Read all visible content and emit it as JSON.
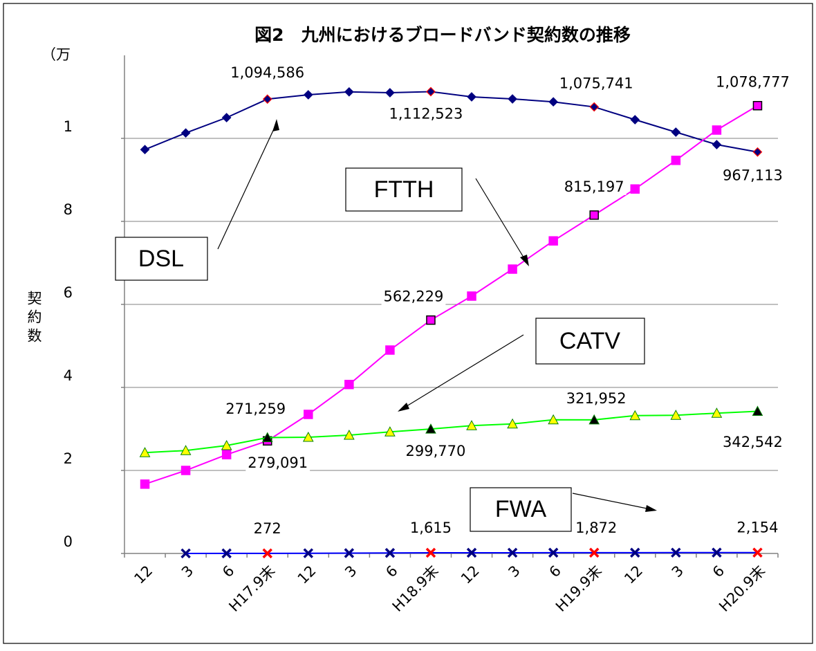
{
  "chart_data": {
    "type": "line",
    "title": "図2　九州におけるブロードバンド契約数の推移",
    "y_unit": "（万",
    "ylabel": "契約数",
    "categories": [
      "12",
      "3",
      "6",
      "H17.9末",
      "12",
      "3",
      "6",
      "H18.9末",
      "12",
      "3",
      "6",
      "H19.9末",
      "12",
      "3",
      "6",
      "H20.9末"
    ],
    "ylim": [
      0,
      12
    ],
    "yticks": [
      0,
      2,
      4,
      6,
      8,
      {
        "value": 10,
        "label": "1"
      }
    ],
    "grid": true,
    "series": [
      {
        "name": "DSL",
        "color": "#000080",
        "marker": "diamond",
        "marker_color": "#000080",
        "highlight_color": "#ff0000",
        "values": [
          9.73,
          10.13,
          10.5,
          10.94586,
          11.05,
          11.12,
          11.1,
          11.12523,
          11.0,
          10.95,
          10.88,
          10.75741,
          10.45,
          10.15,
          9.85,
          9.67113
        ],
        "value_labels": [
          null,
          null,
          null,
          "1,094,586",
          null,
          null,
          null,
          "1,112,523",
          null,
          null,
          null,
          "1,075,741",
          null,
          null,
          null,
          "967,113"
        ]
      },
      {
        "name": "FTTH",
        "color": "#ff00ff",
        "marker": "square",
        "marker_color": "#ff00ff",
        "highlight_color": "#000000",
        "values": [
          1.67,
          2.0,
          2.38,
          2.71259,
          3.35,
          4.07,
          4.9,
          5.62229,
          6.2,
          6.85,
          7.53,
          8.15197,
          8.78,
          9.47,
          10.2,
          10.78777
        ],
        "value_labels": [
          null,
          null,
          null,
          "271,259",
          null,
          null,
          null,
          "562,229",
          null,
          null,
          null,
          "815,197",
          null,
          null,
          null,
          "1,078,777"
        ]
      },
      {
        "name": "CATV",
        "color": "#00ff00",
        "marker": "triangle",
        "marker_color": "#ffff00",
        "highlight_color": "#000000",
        "values": [
          2.43,
          2.48,
          2.6,
          2.79091,
          2.8,
          2.85,
          2.93,
          2.9977,
          3.08,
          3.12,
          3.22,
          3.21952,
          3.32,
          3.33,
          3.38,
          3.42542
        ],
        "value_labels": [
          null,
          null,
          null,
          "279,091",
          null,
          null,
          null,
          "299,770",
          null,
          null,
          null,
          "321,952",
          null,
          null,
          null,
          "342,542"
        ]
      },
      {
        "name": "FWA",
        "color": "#0000ff",
        "marker": "x",
        "marker_color": "#000080",
        "highlight_color": "#ff0000",
        "values": [
          null,
          0.001,
          0.0015,
          0.00272,
          0.005,
          0.008,
          0.012,
          0.01615,
          0.017,
          0.0175,
          0.018,
          0.01872,
          0.019,
          0.02,
          0.021,
          0.02154
        ],
        "value_labels": [
          null,
          null,
          null,
          "272",
          null,
          null,
          null,
          "1,615",
          null,
          null,
          null,
          "1,872",
          null,
          null,
          null,
          "2,154"
        ]
      }
    ]
  }
}
